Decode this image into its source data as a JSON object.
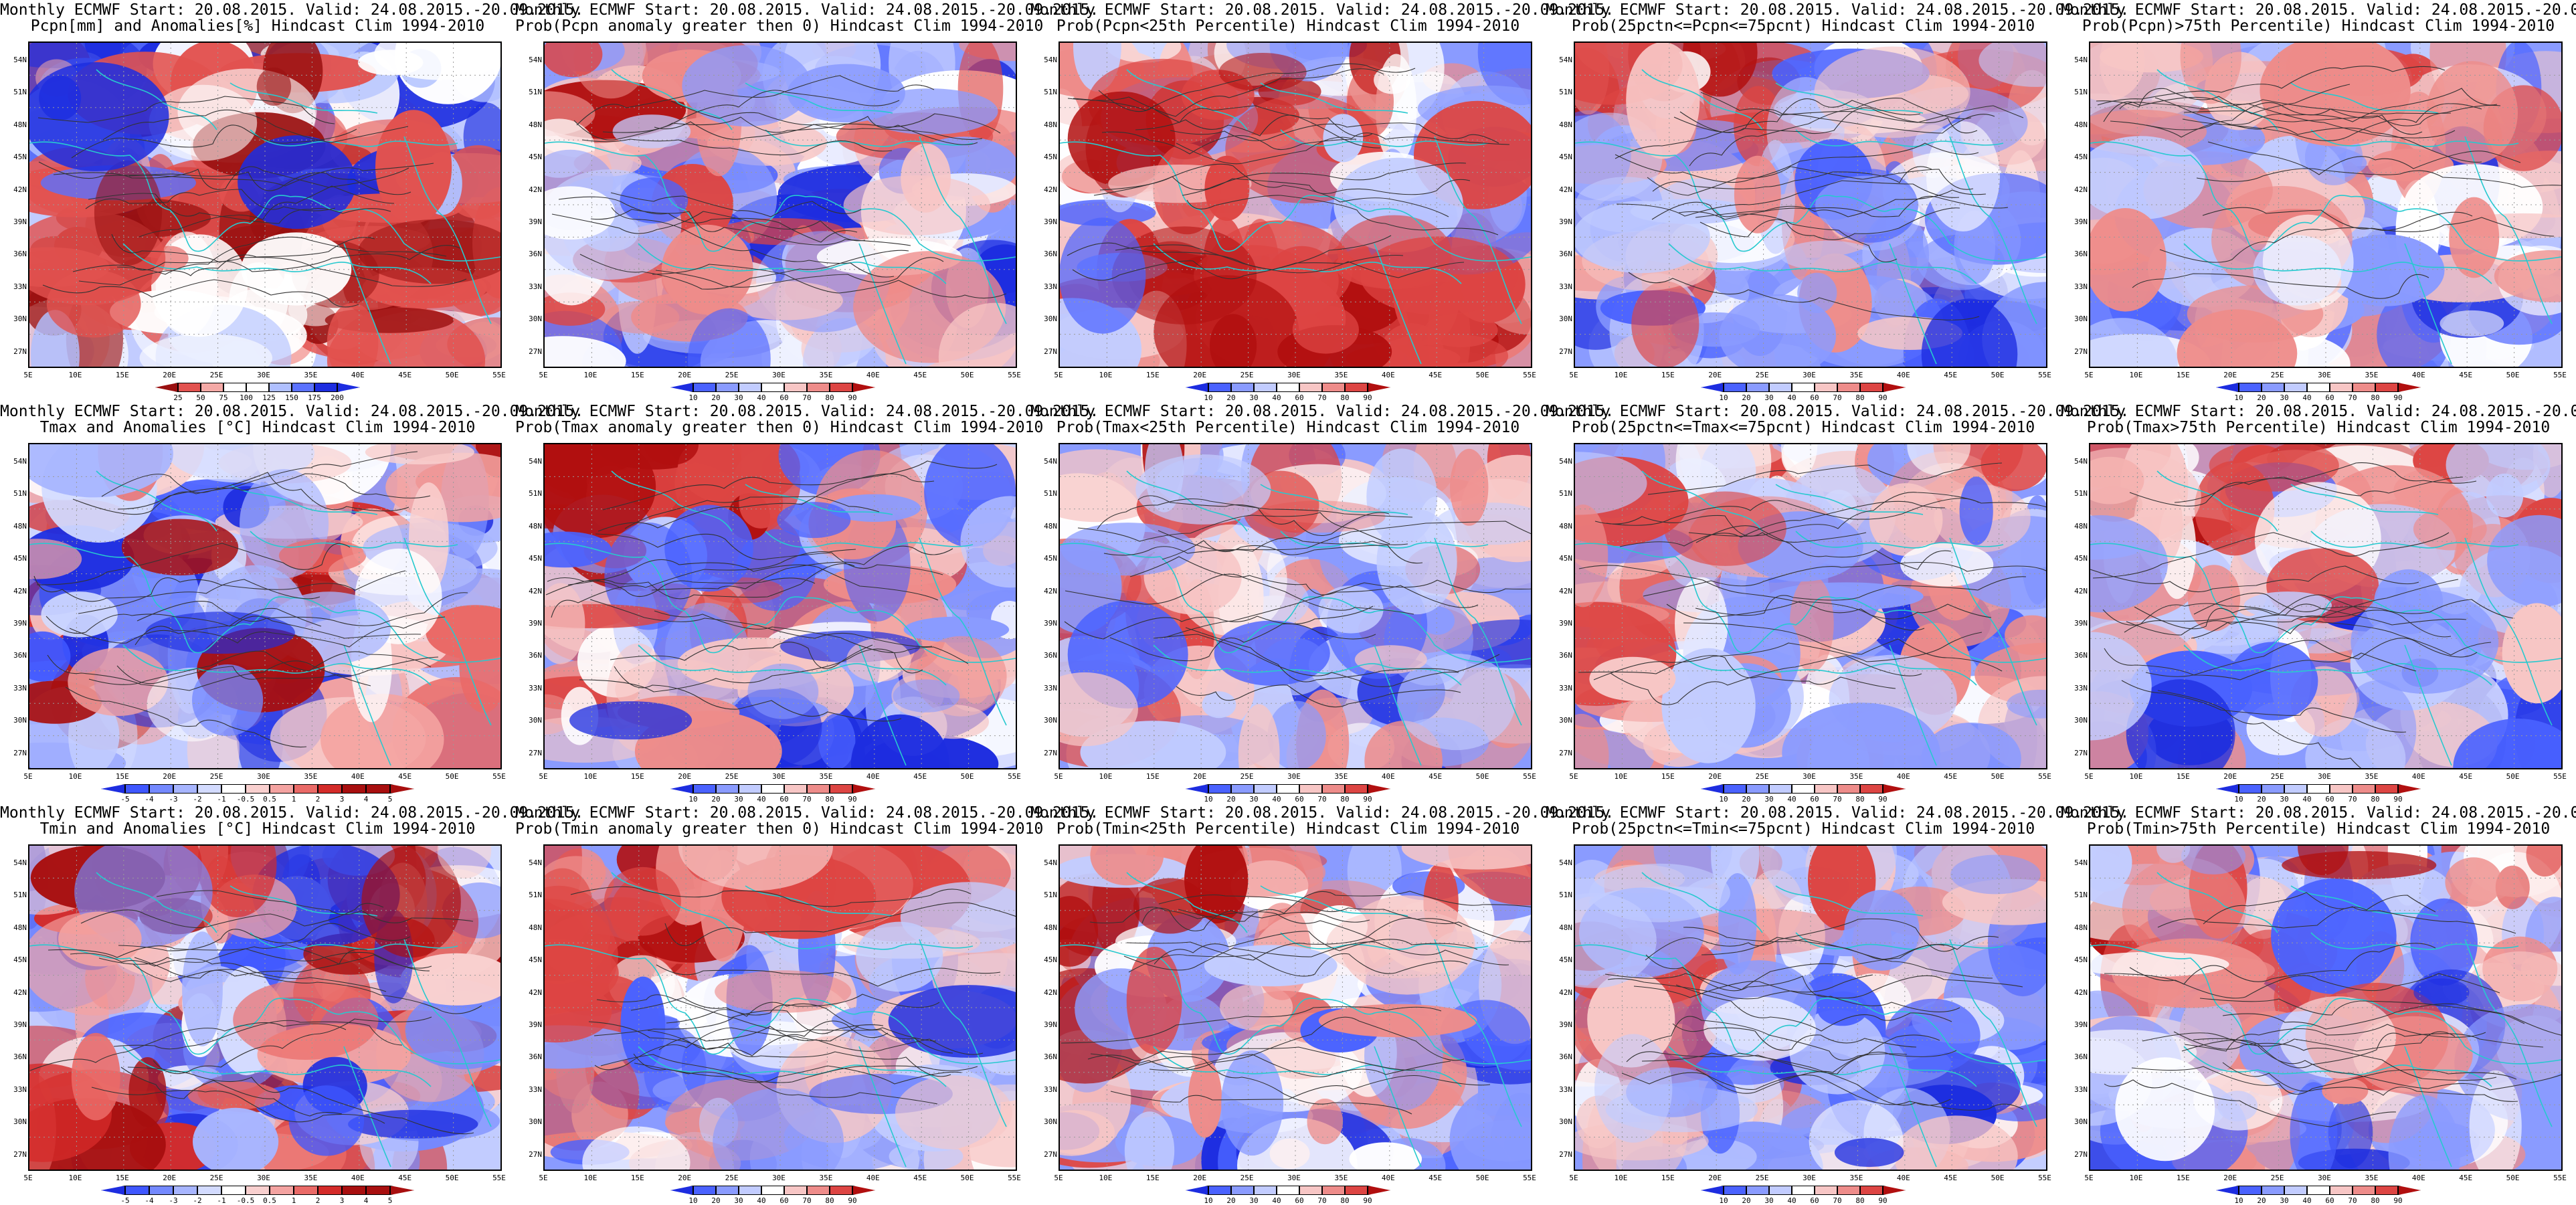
{
  "common": {
    "line1": "Monthly ECMWF Start: 20.08.2015. Valid: 24.08.2015.-20.09.2015.",
    "lat_labels": [
      "54N",
      "51N",
      "48N",
      "45N",
      "42N",
      "39N",
      "36N",
      "33N",
      "30N",
      "27N"
    ],
    "lon_labels": [
      "5E",
      "10E",
      "15E",
      "20E",
      "25E",
      "30E",
      "35E",
      "40E",
      "45E",
      "50E",
      "55E"
    ]
  },
  "panels": [
    {
      "id": "pcpn-anom",
      "line2": "Pcpn[mm] and Anomalies[%] Hindcast Clim 1994-2010",
      "kind": "anom",
      "scale": [
        "25",
        "50",
        "75",
        "100",
        "125",
        "150",
        "175",
        "200"
      ],
      "palette": [
        "#9a1010",
        "#e2524f",
        "#f4a9a6",
        "#ffffff",
        "#ffffff",
        "#b0c0ff",
        "#5b72ff",
        "#1d2de0"
      ]
    },
    {
      "id": "pcpn-prob-gt0",
      "line2": "Prob(Pcpn anomaly greater then 0) Hindcast Clim 1994-2010",
      "kind": "prob",
      "scale": [
        "10",
        "20",
        "30",
        "40",
        "60",
        "70",
        "80",
        "90"
      ]
    },
    {
      "id": "pcpn-prob-lt25",
      "line2": "Prob(Pcpn<25th Percentile) Hindcast Clim 1994-2010",
      "kind": "prob",
      "scale": [
        "10",
        "20",
        "30",
        "40",
        "60",
        "70",
        "80",
        "90"
      ]
    },
    {
      "id": "pcpn-prob-mid",
      "line2": "Prob(25pctn<=Pcpn<=75pcnt) Hindcast Clim 1994-2010",
      "kind": "prob",
      "scale": [
        "10",
        "20",
        "30",
        "40",
        "60",
        "70",
        "80",
        "90"
      ]
    },
    {
      "id": "pcpn-prob-gt75",
      "line2": "Prob(Pcpn)>75th Percentile) Hindcast Clim 1994-2010",
      "kind": "prob",
      "scale": [
        "10",
        "20",
        "30",
        "40",
        "60",
        "70",
        "80",
        "90"
      ]
    },
    {
      "id": "tmax-anom",
      "line2": "Tmax and Anomalies [°C] Hindcast Clim 1994-2010",
      "kind": "anom",
      "scale": [
        "-5",
        "-4",
        "-3",
        "-2",
        "-1",
        "-0.5",
        "0.5",
        "1",
        "2",
        "3",
        "4",
        "5"
      ],
      "palette": [
        "#1d2de0",
        "#3f57ff",
        "#7489ff",
        "#a7b5ff",
        "#d3dbff",
        "#ffffff",
        "#f9d0cf",
        "#f4a3a1",
        "#ea6a67",
        "#d42b29",
        "#a80f0f"
      ]
    },
    {
      "id": "tmax-prob-gt0",
      "line2": "Prob(Tmax anomaly greater then 0) Hindcast Clim 1994-2010",
      "kind": "prob",
      "scale": [
        "10",
        "20",
        "30",
        "40",
        "60",
        "70",
        "80",
        "90"
      ]
    },
    {
      "id": "tmax-prob-lt25",
      "line2": "Prob(Tmax<25th Percentile) Hindcast Clim 1994-2010",
      "kind": "prob",
      "scale": [
        "10",
        "20",
        "30",
        "40",
        "60",
        "70",
        "80",
        "90"
      ]
    },
    {
      "id": "tmax-prob-mid",
      "line2": "Prob(25pctn<=Tmax<=75pcnt) Hindcast Clim 1994-2010",
      "kind": "prob",
      "scale": [
        "10",
        "20",
        "30",
        "40",
        "60",
        "70",
        "80",
        "90"
      ]
    },
    {
      "id": "tmax-prob-gt75",
      "line2": "Prob(Tmax>75th Percentile) Hindcast Clim 1994-2010",
      "kind": "prob",
      "scale": [
        "10",
        "20",
        "30",
        "40",
        "60",
        "70",
        "80",
        "90"
      ]
    },
    {
      "id": "tmin-anom",
      "line2": "Tmin and Anomalies [°C] Hindcast Clim 1994-2010",
      "kind": "anom",
      "scale": [
        "-5",
        "-4",
        "-3",
        "-2",
        "-1",
        "-0.5",
        "0.5",
        "1",
        "2",
        "3",
        "4",
        "5"
      ],
      "palette": [
        "#1d2de0",
        "#3f57ff",
        "#7489ff",
        "#a7b5ff",
        "#d3dbff",
        "#ffffff",
        "#f9d0cf",
        "#f4a3a1",
        "#ea6a67",
        "#d42b29",
        "#a80f0f"
      ]
    },
    {
      "id": "tmin-prob-gt0",
      "line2": "Prob(Tmin anomaly greater then 0) Hindcast Clim 1994-2010",
      "kind": "prob",
      "scale": [
        "10",
        "20",
        "30",
        "40",
        "60",
        "70",
        "80",
        "90"
      ]
    },
    {
      "id": "tmin-prob-lt25",
      "line2": "Prob(Tmin<25th Percentile) Hindcast Clim 1994-2010",
      "kind": "prob",
      "scale": [
        "10",
        "20",
        "30",
        "40",
        "60",
        "70",
        "80",
        "90"
      ]
    },
    {
      "id": "tmin-prob-mid",
      "line2": "Prob(25pctn<=Tmin<=75pcnt) Hindcast Clim 1994-2010",
      "kind": "prob",
      "scale": [
        "10",
        "20",
        "30",
        "40",
        "60",
        "70",
        "80",
        "90"
      ]
    },
    {
      "id": "tmin-prob-gt75",
      "line2": "Prob(Tmin>75th Percentile) Hindcast Clim 1994-2010",
      "kind": "prob",
      "scale": [
        "10",
        "20",
        "30",
        "40",
        "60",
        "70",
        "80",
        "90"
      ]
    }
  ],
  "colors": {
    "prob_palette": [
      "#1d2de0",
      "#4a62ff",
      "#8a9bff",
      "#c2ccff",
      "#ffffff",
      "#f7c6c5",
      "#ee8c8a",
      "#dd4543",
      "#b10f0f"
    ],
    "coast": "#27c9cf",
    "contour": "#333333",
    "grid": "#9a9a9a"
  }
}
